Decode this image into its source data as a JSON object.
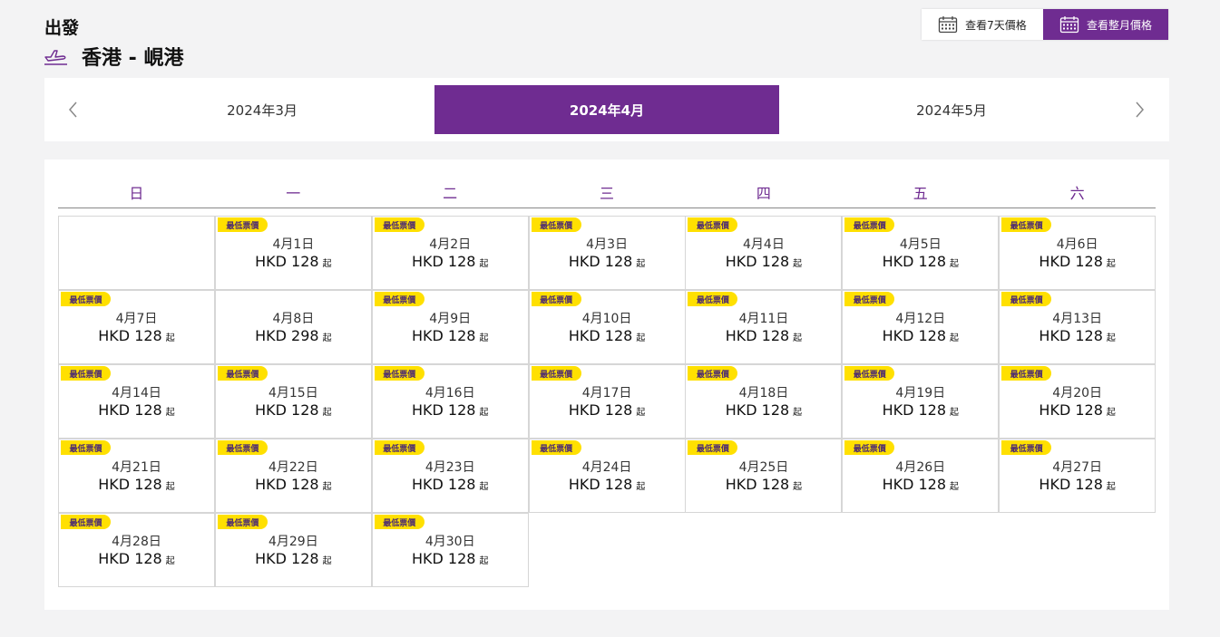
{
  "header": {
    "direction_label": "出發",
    "route": "香港 - 峴港",
    "plane_icon": "plane-departure-icon"
  },
  "view_switch": {
    "week_label": "查看7天價格",
    "month_label": "查看整月價格",
    "active": "month"
  },
  "month_nav": {
    "prev_icon": "chevron-left-icon",
    "next_icon": "chevron-right-icon",
    "tabs": [
      "2024年3月",
      "2024年4月",
      "2024年5月"
    ],
    "active_index": 1
  },
  "calendar": {
    "weekdays": [
      "日",
      "一",
      "二",
      "三",
      "四",
      "五",
      "六"
    ],
    "first_weekday_index": 1,
    "badge_label": "最低票價",
    "from_suffix": "起",
    "days": [
      {
        "date": "4月1日",
        "price": "HKD 128",
        "lowest": true
      },
      {
        "date": "4月2日",
        "price": "HKD 128",
        "lowest": true
      },
      {
        "date": "4月3日",
        "price": "HKD 128",
        "lowest": true
      },
      {
        "date": "4月4日",
        "price": "HKD 128",
        "lowest": true
      },
      {
        "date": "4月5日",
        "price": "HKD 128",
        "lowest": true
      },
      {
        "date": "4月6日",
        "price": "HKD 128",
        "lowest": true
      },
      {
        "date": "4月7日",
        "price": "HKD 128",
        "lowest": true
      },
      {
        "date": "4月8日",
        "price": "HKD 298",
        "lowest": false
      },
      {
        "date": "4月9日",
        "price": "HKD 128",
        "lowest": true
      },
      {
        "date": "4月10日",
        "price": "HKD 128",
        "lowest": true
      },
      {
        "date": "4月11日",
        "price": "HKD 128",
        "lowest": true
      },
      {
        "date": "4月12日",
        "price": "HKD 128",
        "lowest": true
      },
      {
        "date": "4月13日",
        "price": "HKD 128",
        "lowest": true
      },
      {
        "date": "4月14日",
        "price": "HKD 128",
        "lowest": true
      },
      {
        "date": "4月15日",
        "price": "HKD 128",
        "lowest": true
      },
      {
        "date": "4月16日",
        "price": "HKD 128",
        "lowest": true
      },
      {
        "date": "4月17日",
        "price": "HKD 128",
        "lowest": true
      },
      {
        "date": "4月18日",
        "price": "HKD 128",
        "lowest": true
      },
      {
        "date": "4月19日",
        "price": "HKD 128",
        "lowest": true
      },
      {
        "date": "4月20日",
        "price": "HKD 128",
        "lowest": true
      },
      {
        "date": "4月21日",
        "price": "HKD 128",
        "lowest": true
      },
      {
        "date": "4月22日",
        "price": "HKD 128",
        "lowest": true
      },
      {
        "date": "4月23日",
        "price": "HKD 128",
        "lowest": true
      },
      {
        "date": "4月24日",
        "price": "HKD 128",
        "lowest": true
      },
      {
        "date": "4月25日",
        "price": "HKD 128",
        "lowest": true
      },
      {
        "date": "4月26日",
        "price": "HKD 128",
        "lowest": true
      },
      {
        "date": "4月27日",
        "price": "HKD 128",
        "lowest": true
      },
      {
        "date": "4月28日",
        "price": "HKD 128",
        "lowest": true
      },
      {
        "date": "4月29日",
        "price": "HKD 128",
        "lowest": true
      },
      {
        "date": "4月30日",
        "price": "HKD 128",
        "lowest": true
      }
    ]
  },
  "colors": {
    "brand_purple": "#6f2c91",
    "badge_yellow": "#ffe000",
    "badge_text": "#4b2a73"
  }
}
